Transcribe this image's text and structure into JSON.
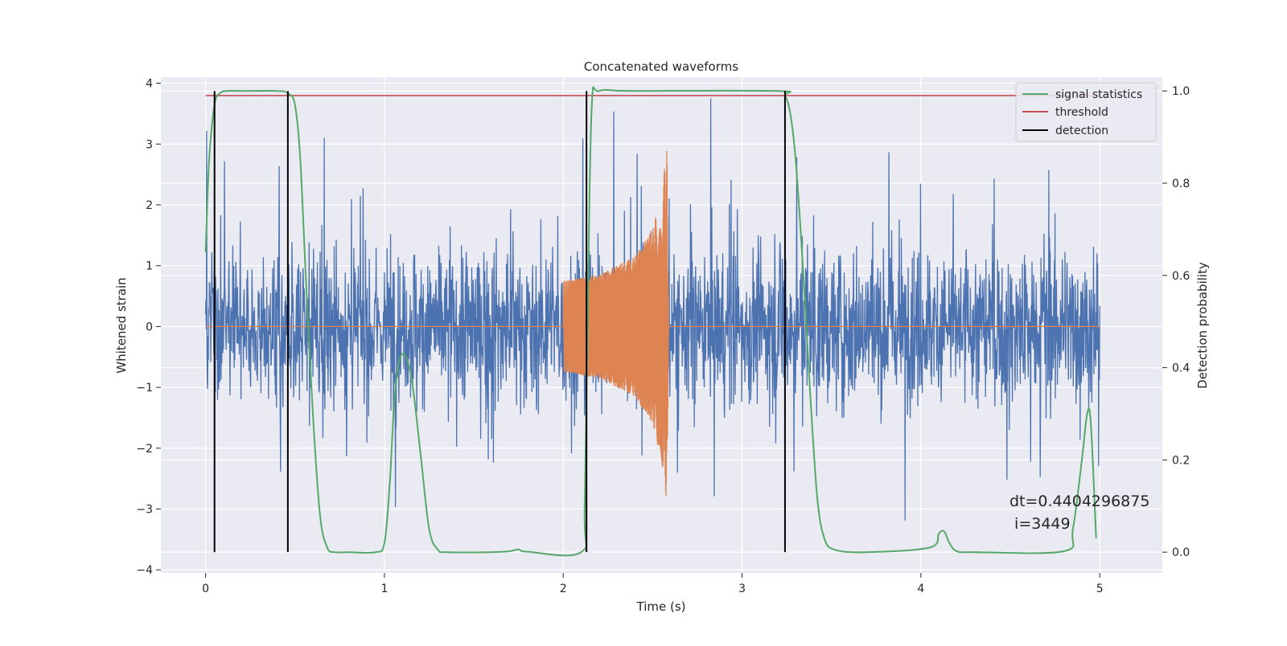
{
  "chart_data": {
    "type": "line",
    "title": "Concatenated waveforms",
    "xlabel": "Time (s)",
    "ylabel": "Whitened strain",
    "ylabel_right": "Detection probability",
    "xlim": [
      -0.25,
      5.35
    ],
    "ylim": [
      -4.05,
      4.1
    ],
    "ylim_right": [
      -0.045,
      1.03
    ],
    "xticks": [
      0,
      1,
      2,
      3,
      4,
      5
    ],
    "yticks": [
      -4,
      -3,
      -2,
      -1,
      0,
      1,
      2,
      3,
      4
    ],
    "yticks_right": [
      0.0,
      0.2,
      0.4,
      0.6,
      0.8,
      1.0
    ],
    "grid": true,
    "legend_position": "top-right",
    "legend": [
      "signal statistics",
      "threshold",
      "detection"
    ],
    "colors": {
      "strain": "#4c72b0",
      "waveform": "#dd8452",
      "signal_statistics": "#55a868",
      "threshold": "#c44e52",
      "detection": "#000000",
      "background": "#eaeaf2"
    },
    "series": [
      {
        "name": "Whitened strain",
        "axis": "left",
        "note": "noise",
        "x_range": [
          0,
          5
        ],
        "amplitude_range": [
          -3.65,
          3.75
        ]
      },
      {
        "axis": "left",
        "x": [
          0,
          1.99,
          2.0,
          2.2,
          2.4,
          2.5,
          2.55,
          2.58,
          2.59,
          5.0
        ],
        "envelope": [
          0,
          0,
          0.75,
          0.85,
          1.15,
          1.6,
          2.2,
          2.95,
          0,
          0
        ]
      },
      {
        "name": "signal statistics",
        "axis": "right",
        "x": [
          0,
          0.02,
          0.05,
          0.08,
          0.12,
          0.2,
          0.4,
          0.46,
          0.5,
          0.53,
          0.56,
          0.6,
          0.64,
          0.68,
          0.72,
          0.8,
          0.95,
          1.0,
          1.03,
          1.06,
          1.1,
          1.15,
          1.2,
          1.25,
          1.3,
          1.35,
          1.6,
          1.7,
          1.75,
          1.8,
          2.1,
          2.12,
          2.14,
          2.16,
          2.2,
          2.4,
          3.2,
          3.24,
          3.27,
          3.3,
          3.34,
          3.38,
          3.42,
          3.46,
          3.52,
          3.7,
          4.05,
          4.1,
          4.13,
          4.16,
          4.2,
          4.3,
          4.8,
          4.85,
          4.9,
          4.93,
          4.95,
          4.98
        ],
        "y": [
          0.65,
          0.85,
          0.97,
          0.995,
          1.0,
          1.0,
          1.0,
          0.995,
          0.97,
          0.85,
          0.6,
          0.3,
          0.08,
          0.01,
          0.0,
          0.0,
          0.0,
          0.02,
          0.15,
          0.35,
          0.43,
          0.38,
          0.22,
          0.05,
          0.005,
          0.0,
          0.0,
          0.002,
          0.006,
          0.001,
          0.0,
          0.1,
          0.6,
          0.97,
          1.0,
          1.0,
          1.0,
          0.99,
          0.95,
          0.85,
          0.62,
          0.35,
          0.12,
          0.03,
          0.005,
          0.0,
          0.01,
          0.04,
          0.045,
          0.02,
          0.002,
          0.0,
          0.002,
          0.05,
          0.2,
          0.3,
          0.28,
          0.03
        ]
      },
      {
        "name": "threshold",
        "axis": "right",
        "x": [
          0,
          5
        ],
        "y": [
          0.99,
          0.99
        ]
      }
    ],
    "detections": [
      {
        "x": 0.05,
        "y_range": [
          0.0,
          1.0
        ]
      },
      {
        "x": 0.46,
        "y_range": [
          0.0,
          1.0
        ]
      },
      {
        "x": 2.13,
        "y_range": [
          0.0,
          1.0
        ]
      },
      {
        "x": 3.24,
        "y_range": [
          0.0,
          1.0
        ]
      }
    ],
    "annotations": [
      "dt=0.4404296875",
      " i=3449"
    ]
  }
}
